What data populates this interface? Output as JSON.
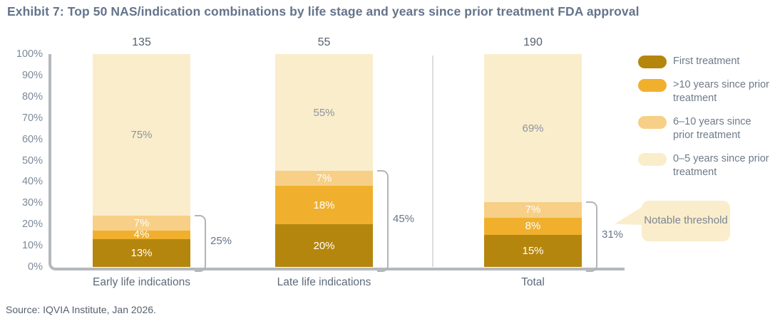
{
  "title": "Exhibit 7: Top 50 NAS/indication combinations by life stage and years since prior treatment FDA approval",
  "source": "Source: IQVIA Institute, Jan 2026.",
  "colors": {
    "first_treatment": "#B5860D",
    "gt10_years": "#F0B02E",
    "y6_10_years": "#F7CF86",
    "y0_5_years": "#FAEDCB",
    "axis": "#B5B8BC",
    "title_text": "#64748B",
    "callout_bg": "#FAEDCB"
  },
  "chart_data": {
    "type": "bar",
    "subtype": "100%-stacked-column",
    "title": "Exhibit 7: Top 50 NAS/indication combinations by life stage and years since prior treatment FDA approval",
    "categories": [
      "Early life indications",
      "Late life indications",
      "Total"
    ],
    "category_totals": [
      "135",
      "55",
      "190"
    ],
    "y_ticks": [
      "0%",
      "10%",
      "20%",
      "30%",
      "40%",
      "50%",
      "60%",
      "70%",
      "80%",
      "90%",
      "100%"
    ],
    "ylim": [
      0,
      100
    ],
    "grid": false,
    "legend_position": "right",
    "series": [
      {
        "name": "First treatment",
        "color": "#B5860D",
        "label_color": "#FFFFFF",
        "values": [
          13,
          20,
          15
        ],
        "labels": [
          "13%",
          "20%",
          "15%"
        ]
      },
      {
        "name": ">10 years since prior treatment",
        "color": "#F0B02E",
        "label_color": "#FFFFFF",
        "values": [
          4,
          18,
          8
        ],
        "labels": [
          "4%",
          "18%",
          "8%"
        ]
      },
      {
        "name": "6–10 years since prior treatment",
        "color": "#F7CF86",
        "label_color": "#FFFFFF",
        "values": [
          7,
          7,
          7
        ],
        "labels": [
          "7%",
          "7%",
          "7%"
        ]
      },
      {
        "name": "0–5 years since prior treatment",
        "color": "#FAEDCB",
        "label_color": "#8B94A3",
        "values": [
          75,
          55,
          69
        ],
        "labels": [
          "75%",
          "55%",
          "69%"
        ]
      }
    ],
    "brackets": [
      {
        "category": "Early life indications",
        "label": "25%",
        "spans_bottom_series": 3
      },
      {
        "category": "Late life indications",
        "label": "45%",
        "spans_bottom_series": 3
      },
      {
        "category": "Total",
        "label": "31%",
        "spans_bottom_series": 3
      }
    ],
    "annotation": "Notable threshold"
  }
}
